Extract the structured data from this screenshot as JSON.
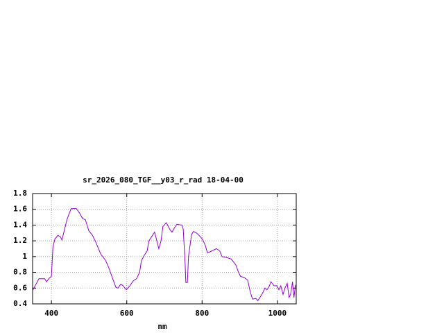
{
  "chart_data": {
    "type": "line",
    "title": "sr_2026_080_TGF__y03_r_rad 18-04-00",
    "x_label": "nm",
    "xlim": [
      350,
      1050
    ],
    "xticks": [
      400,
      600,
      800,
      1000
    ],
    "ylim": [
      0.4,
      1.8
    ],
    "yticks": [
      0.4,
      0.6,
      0.8,
      1,
      1.2,
      1.4,
      1.6,
      1.8
    ],
    "grid": true,
    "series": [
      {
        "color": "#9400d3",
        "x": [
          350,
          367,
          382,
          387,
          393,
          400,
          404,
          409,
          417,
          424,
          428,
          435,
          442,
          450,
          453,
          466,
          475,
          483,
          490,
          499,
          509,
          518,
          531,
          544,
          553,
          564,
          571,
          577,
          584,
          590,
          599,
          608,
          617,
          626,
          634,
          639,
          647,
          654,
          659,
          667,
          674,
          685,
          691,
          696,
          705,
          715,
          720,
          726,
          733,
          746,
          750,
          755,
          757,
          761,
          764,
          772,
          777,
          785,
          792,
          801,
          808,
          814,
          821,
          829,
          838,
          847,
          853,
          864,
          877,
          889,
          897,
          902,
          913,
          921,
          928,
          934,
          943,
          948,
          956,
          961,
          967,
          972,
          978,
          983,
          991,
          998,
          1004,
          1009,
          1015,
          1020,
          1026,
          1031,
          1035,
          1040,
          1044,
          1048
        ],
        "values": [
          0.57,
          0.72,
          0.72,
          0.68,
          0.72,
          0.75,
          1.12,
          1.22,
          1.27,
          1.25,
          1.21,
          1.35,
          1.48,
          1.58,
          1.61,
          1.61,
          1.55,
          1.48,
          1.47,
          1.33,
          1.27,
          1.18,
          1.03,
          0.95,
          0.85,
          0.7,
          0.61,
          0.6,
          0.65,
          0.63,
          0.58,
          0.63,
          0.69,
          0.72,
          0.8,
          0.95,
          1.02,
          1.07,
          1.2,
          1.26,
          1.31,
          1.1,
          1.2,
          1.38,
          1.43,
          1.34,
          1.31,
          1.36,
          1.41,
          1.4,
          1.35,
          0.9,
          0.67,
          0.67,
          1.0,
          1.28,
          1.32,
          1.3,
          1.27,
          1.22,
          1.15,
          1.05,
          1.06,
          1.08,
          1.1,
          1.07,
          1.0,
          0.99,
          0.97,
          0.9,
          0.8,
          0.75,
          0.73,
          0.7,
          0.55,
          0.46,
          0.47,
          0.44,
          0.5,
          0.54,
          0.6,
          0.58,
          0.62,
          0.68,
          0.63,
          0.63,
          0.58,
          0.63,
          0.52,
          0.6,
          0.66,
          0.48,
          0.52,
          0.68,
          0.48,
          0.64
        ]
      }
    ]
  }
}
